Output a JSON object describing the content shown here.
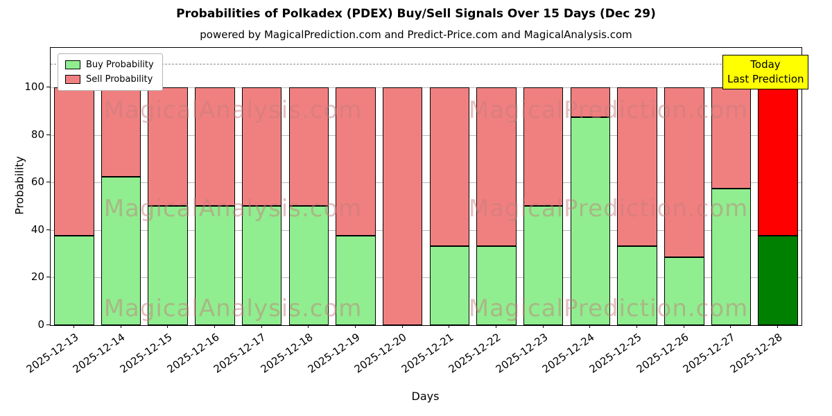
{
  "chart_data": {
    "type": "bar",
    "stacked": true,
    "title": "Probabilities of Polkadex (PDEX) Buy/Sell Signals Over 15 Days (Dec 29)",
    "subtitle": "powered by MagicalPrediction.com and Predict-Price.com and MagicalAnalysis.com",
    "xlabel": "Days",
    "ylabel": "Probability",
    "ylim": [
      0,
      116.6
    ],
    "yticks": [
      0,
      20,
      40,
      60,
      80,
      100
    ],
    "grid": "horizontal",
    "legend_position": "upper left",
    "dashed_hline_y": 110,
    "bar_edge_color": "#000000",
    "today_index": 15,
    "categories": [
      "2025-12-13",
      "2025-12-14",
      "2025-12-15",
      "2025-12-16",
      "2025-12-17",
      "2025-12-18",
      "2025-12-19",
      "2025-12-20",
      "2025-12-21",
      "2025-12-22",
      "2025-12-23",
      "2025-12-24",
      "2025-12-25",
      "2025-12-26",
      "2025-12-27",
      "2025-12-28"
    ],
    "series": [
      {
        "name": "Buy Probability",
        "color": "#90ee90",
        "today_color": "#008000",
        "values": [
          37.5,
          62.5,
          50,
          50,
          50,
          50,
          37.5,
          0,
          33.3,
          33.3,
          50,
          87.5,
          33.3,
          28.6,
          57.5,
          37.5
        ]
      },
      {
        "name": "Sell Probability",
        "color": "#f08080",
        "today_color": "#ff0000",
        "values": [
          62.5,
          37.5,
          50,
          50,
          50,
          50,
          62.5,
          100,
          66.7,
          66.7,
          50,
          12.5,
          66.7,
          71.4,
          42.5,
          62.5
        ]
      }
    ],
    "annotation": {
      "line1": "Today",
      "line2": "Last Prediction",
      "bg": "#ffff00"
    },
    "watermarks": [
      "MagicalAnalysis.com",
      "MagicalPrediction.com"
    ]
  }
}
